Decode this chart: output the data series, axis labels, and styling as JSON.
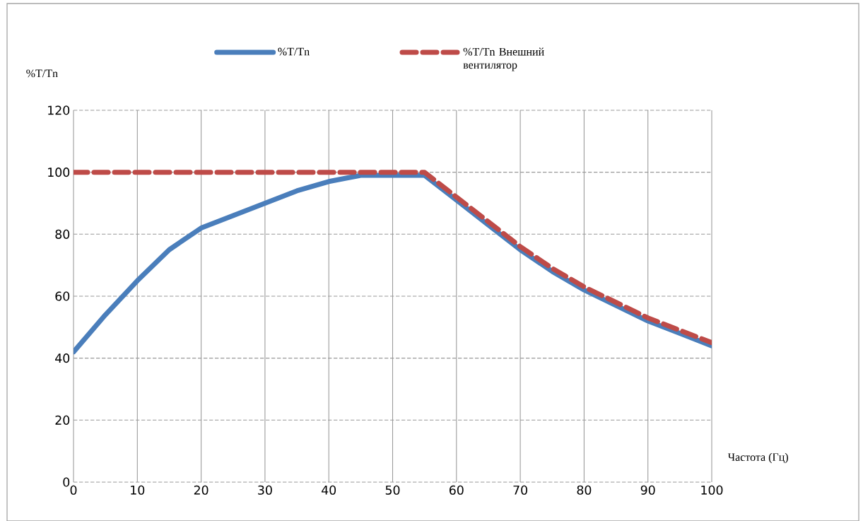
{
  "chart_data": {
    "type": "line",
    "xlabel": "Частота (Гц)",
    "ylabel": "%T/Tn",
    "x": [
      0,
      5,
      10,
      15,
      20,
      25,
      30,
      35,
      40,
      45,
      50,
      55,
      60,
      65,
      70,
      75,
      80,
      85,
      90,
      95,
      100
    ],
    "series": [
      {
        "name": "%T/Tn",
        "color": "#4a7ebb",
        "line_style": "solid",
        "values": [
          42,
          54,
          65,
          75,
          82,
          86,
          90,
          94,
          97,
          99,
          99,
          99,
          91,
          83,
          75,
          68,
          62,
          57,
          52,
          48,
          44
        ]
      },
      {
        "name": "%T/Tn Внешний вентилятор",
        "color": "#be4b48",
        "line_style": "dashed",
        "values": [
          100,
          100,
          100,
          100,
          100,
          100,
          100,
          100,
          100,
          100,
          100,
          100,
          92,
          84,
          76,
          69,
          63,
          58,
          53,
          49,
          45
        ]
      }
    ],
    "xlim": [
      0,
      100
    ],
    "ylim": [
      0,
      120
    ],
    "xticks": [
      0,
      10,
      20,
      30,
      40,
      50,
      60,
      70,
      80,
      90,
      100
    ],
    "yticks": [
      0,
      20,
      40,
      60,
      80,
      100,
      120
    ],
    "grid": true,
    "legend": "top",
    "marker": "none"
  }
}
